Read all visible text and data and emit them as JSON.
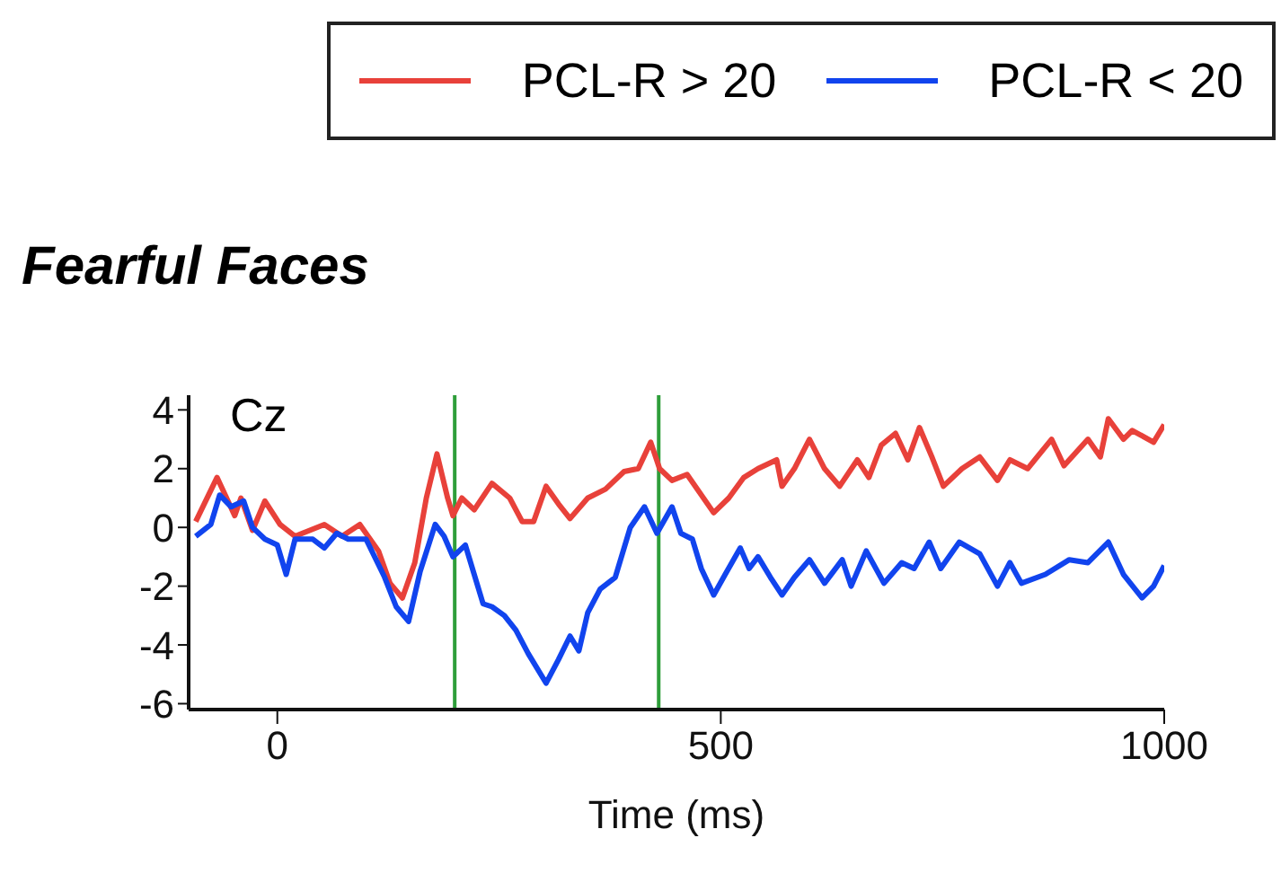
{
  "chart_data": {
    "type": "line",
    "title": "Fearful Faces",
    "xlabel": "Time (ms)",
    "annotations": [
      "Cz"
    ],
    "legend": "top right",
    "grid": false,
    "marker": "none",
    "line_style": "solid",
    "xlim": [
      -100,
      1000
    ],
    "xticks": [
      0,
      500,
      1000
    ],
    "ylim": [
      -6.2,
      4.5
    ],
    "yticks": [
      4,
      2,
      0,
      -2,
      -4,
      -6
    ],
    "ref_lines": [
      {
        "axis": "x",
        "value": 200,
        "color": "#2e9e3a"
      },
      {
        "axis": "x",
        "value": 430,
        "color": "#2e9e3a"
      }
    ],
    "series": [
      {
        "name": "PCL-R > 20",
        "color": "#e8413a",
        "x": [
          -92,
          -68,
          -48,
          -41,
          -28,
          -14,
          3,
          20,
          53,
          73,
          93,
          114,
          127,
          141,
          155,
          168,
          180,
          192,
          198,
          208,
          222,
          242,
          262,
          276,
          289,
          303,
          317,
          330,
          350,
          370,
          391,
          407,
          421,
          431,
          445,
          462,
          492,
          509,
          526,
          542,
          563,
          569,
          583,
          600,
          617,
          634,
          654,
          667,
          681,
          697,
          711,
          724,
          738,
          751,
          772,
          792,
          812,
          826,
          846,
          873,
          887,
          914,
          928,
          937,
          954,
          964,
          988,
          1000
        ],
        "values": [
          0.2,
          1.7,
          0.4,
          1.0,
          -0.1,
          0.9,
          0.1,
          -0.3,
          0.1,
          -0.3,
          0.1,
          -0.8,
          -1.9,
          -2.4,
          -1.2,
          1.0,
          2.5,
          1.0,
          0.4,
          1.0,
          0.6,
          1.5,
          1.0,
          0.2,
          0.2,
          1.4,
          0.8,
          0.3,
          1.0,
          1.3,
          1.9,
          2.0,
          2.9,
          2.0,
          1.6,
          1.8,
          0.5,
          1.0,
          1.7,
          2.0,
          2.3,
          1.4,
          2.0,
          3.0,
          2.0,
          1.4,
          2.3,
          1.7,
          2.8,
          3.2,
          2.3,
          3.4,
          2.4,
          1.4,
          2.0,
          2.4,
          1.6,
          2.3,
          2.0,
          3.0,
          2.1,
          3.0,
          2.4,
          3.7,
          3.0,
          3.3,
          2.9,
          3.5
        ]
      },
      {
        "name": "PCL-R < 20",
        "color": "#1144ee",
        "x": [
          -92,
          -75,
          -65,
          -52,
          -38,
          -28,
          -14,
          0,
          10,
          20,
          40,
          53,
          67,
          80,
          100,
          121,
          134,
          148,
          161,
          178,
          188,
          198,
          212,
          222,
          232,
          242,
          256,
          269,
          283,
          303,
          317,
          330,
          340,
          350,
          364,
          381,
          398,
          414,
          428,
          445,
          455,
          468,
          478,
          492,
          505,
          522,
          532,
          542,
          556,
          569,
          583,
          600,
          617,
          637,
          647,
          664,
          684,
          704,
          718,
          735,
          748,
          769,
          792,
          812,
          826,
          839,
          866,
          893,
          914,
          937,
          954,
          975,
          988,
          1000
        ],
        "values": [
          -0.3,
          0.1,
          1.1,
          0.7,
          0.9,
          0.0,
          -0.4,
          -0.6,
          -1.6,
          -0.4,
          -0.4,
          -0.7,
          -0.2,
          -0.4,
          -0.4,
          -1.7,
          -2.7,
          -3.2,
          -1.5,
          0.1,
          -0.3,
          -1.0,
          -0.6,
          -1.6,
          -2.6,
          -2.7,
          -3.0,
          -3.5,
          -4.3,
          -5.3,
          -4.5,
          -3.7,
          -4.2,
          -2.9,
          -2.1,
          -1.7,
          0.0,
          0.7,
          -0.2,
          0.7,
          -0.2,
          -0.4,
          -1.4,
          -2.3,
          -1.6,
          -0.7,
          -1.4,
          -1.0,
          -1.7,
          -2.3,
          -1.7,
          -1.1,
          -1.9,
          -1.1,
          -2.0,
          -0.8,
          -1.9,
          -1.2,
          -1.4,
          -0.5,
          -1.4,
          -0.5,
          -0.9,
          -2.0,
          -1.2,
          -1.9,
          -1.6,
          -1.1,
          -1.2,
          -0.5,
          -1.6,
          -2.4,
          -2.0,
          -1.3
        ]
      }
    ]
  }
}
